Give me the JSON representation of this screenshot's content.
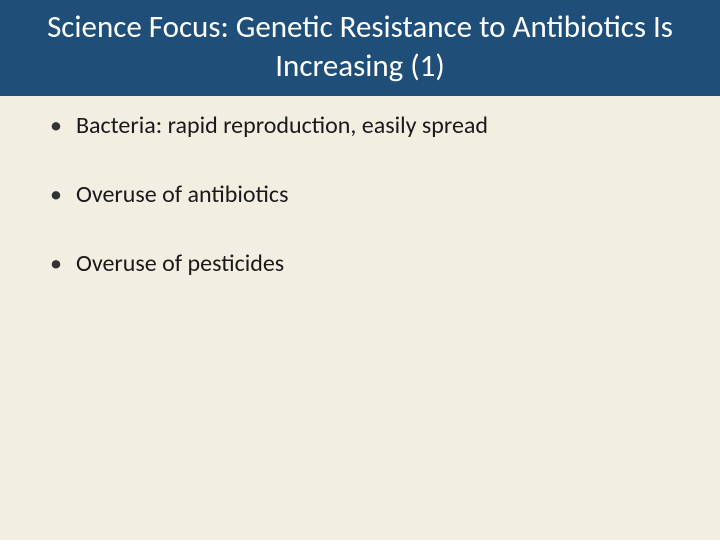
{
  "slide": {
    "title": "Science Focus: Genetic Resistance to Antibiotics Is Increasing (1)",
    "title_bg_color": "#1f4e79",
    "title_text_color": "#ffffff",
    "title_fontsize": 31,
    "body_bg_color": "#f2eee1",
    "bullets": [
      {
        "marker": "•",
        "text": "Bacteria: rapid reproduction, easily spread"
      },
      {
        "marker": "•",
        "text": "Overuse of antibiotics"
      },
      {
        "marker": "•",
        "text": "Overuse of pesticides"
      }
    ],
    "bullet_fontsize": 24,
    "bullet_text_color": "#1a1a1a"
  }
}
